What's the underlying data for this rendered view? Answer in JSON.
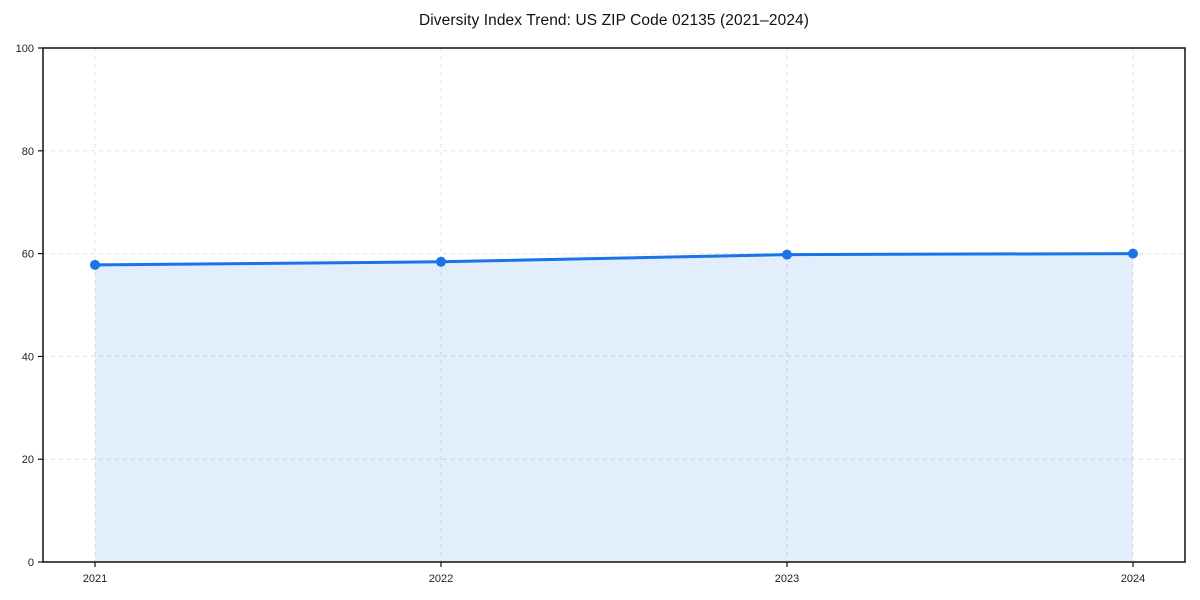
{
  "page": {
    "background": "#ffffff"
  },
  "chart_data": {
    "type": "area",
    "title": "Diversity Index Trend: US ZIP Code 02135 (2021–2024)",
    "categories": [
      "2021",
      "2022",
      "2023",
      "2024"
    ],
    "values": [
      57.8,
      58.4,
      59.8,
      60.0
    ],
    "xlabel": "",
    "ylabel": "",
    "ylim": [
      0,
      100
    ],
    "yticks": [
      0,
      20,
      40,
      60,
      80,
      100
    ],
    "grid": true,
    "grid_style": "dashed",
    "legend_position": "none",
    "line_color": "#1a73e8",
    "marker_color": "#1a73e8",
    "fill_color": "rgba(26,115,232,0.12)",
    "grid_color": "#e1e1e1",
    "axis_color": "#111111",
    "text_color": "#222222"
  }
}
